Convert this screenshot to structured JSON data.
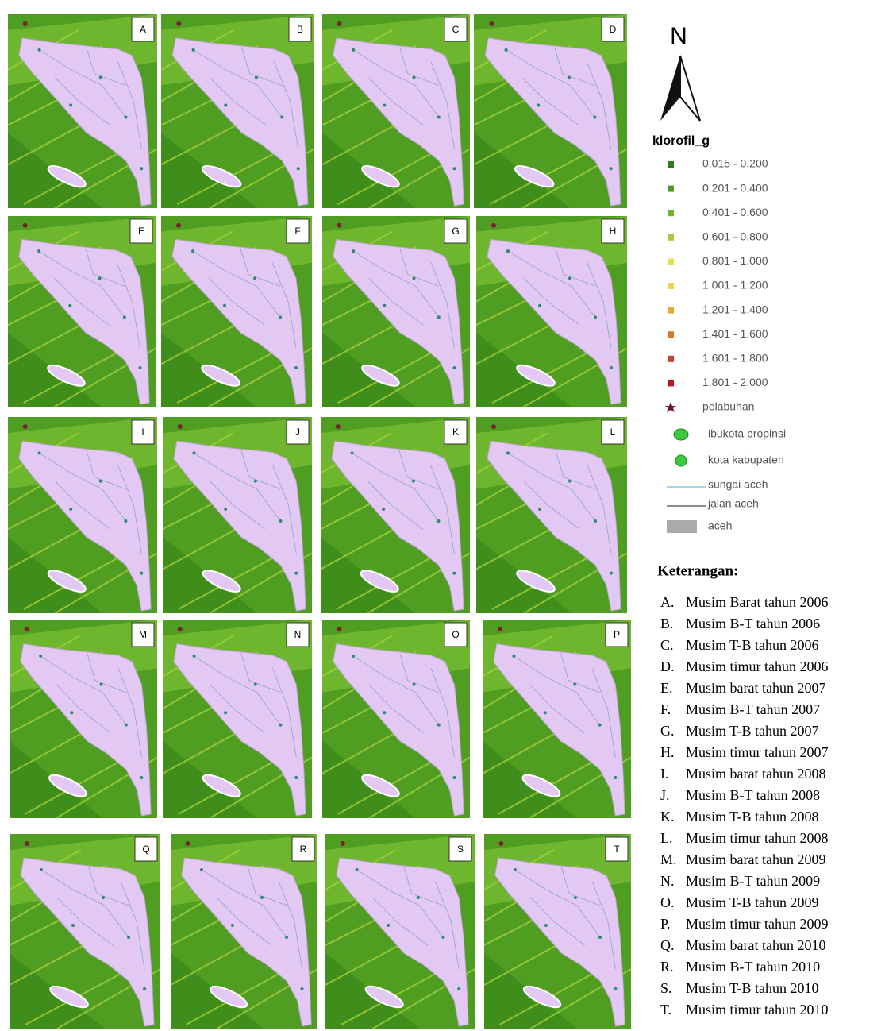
{
  "panels": [
    {
      "letter": "A"
    },
    {
      "letter": "B"
    },
    {
      "letter": "C"
    },
    {
      "letter": "D"
    },
    {
      "letter": "E"
    },
    {
      "letter": "F"
    },
    {
      "letter": "G"
    },
    {
      "letter": "H"
    },
    {
      "letter": "I"
    },
    {
      "letter": "J"
    },
    {
      "letter": "K"
    },
    {
      "letter": "L"
    },
    {
      "letter": "M"
    },
    {
      "letter": "N"
    },
    {
      "letter": "O"
    },
    {
      "letter": "P"
    },
    {
      "letter": "Q"
    },
    {
      "letter": "R"
    },
    {
      "letter": "S"
    },
    {
      "letter": "T"
    }
  ],
  "legend": {
    "north": "N",
    "title": "klorofil_g",
    "classes": [
      {
        "label": "0.015 - 0.200",
        "color": "#2f7d1c"
      },
      {
        "label": "0.201 - 0.400",
        "color": "#4c9a24"
      },
      {
        "label": "0.401 - 0.600",
        "color": "#74b42c"
      },
      {
        "label": "0.601 - 0.800",
        "color": "#a6c83a"
      },
      {
        "label": "0.801 - 1.000",
        "color": "#e2e248"
      },
      {
        "label": "1.001 - 1.200",
        "color": "#ecd64a"
      },
      {
        "label": "1.201 - 1.400",
        "color": "#dfa838"
      },
      {
        "label": "1.401 - 1.600",
        "color": "#d4782e"
      },
      {
        "label": "1.601 - 1.800",
        "color": "#cc4030"
      },
      {
        "label": "1.801 - 2.000",
        "color": "#b81820"
      }
    ],
    "symbols": [
      "pelabuhan",
      "ibukota propinsi",
      "kota kabupaten",
      "sungai aceh",
      "jalan aceh",
      "aceh"
    ]
  },
  "notes": {
    "title": "Keterangan:",
    "items": [
      {
        "letter": "A.",
        "text": "Musim Barat tahun 2006"
      },
      {
        "letter": "B.",
        "text": "Musim B-T tahun 2006"
      },
      {
        "letter": "C.",
        "text": "Musim T-B tahun 2006"
      },
      {
        "letter": "D.",
        "text": "Musim timur tahun 2006"
      },
      {
        "letter": "E.",
        "text": "Musim barat tahun 2007"
      },
      {
        "letter": "F.",
        "text": "Musim B-T tahun 2007"
      },
      {
        "letter": "G.",
        "text": "Musim T-B tahun 2007"
      },
      {
        "letter": "H.",
        "text": "Musim timur tahun 2007"
      },
      {
        "letter": "I.",
        "text": "Musim barat tahun 2008"
      },
      {
        "letter": "J.",
        "text": "Musim B-T tahun 2008"
      },
      {
        "letter": "K.",
        "text": "Musim T-B tahun 2008"
      },
      {
        "letter": "L.",
        "text": "Musim timur tahun 2008"
      },
      {
        "letter": "M.",
        "text": "Musim barat tahun 2009"
      },
      {
        "letter": "N.",
        "text": "Musim B-T tahun 2009"
      },
      {
        "letter": "O.",
        "text": "Musim T-B tahun 2009"
      },
      {
        "letter": "P.",
        "text": "Musim timur tahun 2009"
      },
      {
        "letter": "Q.",
        "text": "Musim barat tahun 2010"
      },
      {
        "letter": "R.",
        "text": "Musim B-T tahun 2010"
      },
      {
        "letter": "S.",
        "text": "Musim T-B tahun 2010"
      },
      {
        "letter": "T.",
        "text": "Musim timur tahun 2010"
      }
    ]
  }
}
